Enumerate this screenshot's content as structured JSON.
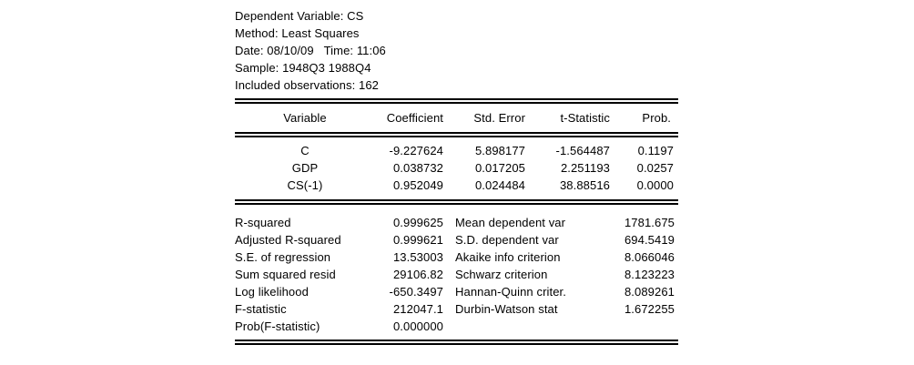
{
  "header": {
    "lines": [
      "Dependent Variable: CS",
      "Method: Least Squares",
      "Date: 08/10/09   Time: 11:06",
      "Sample: 1948Q3 1988Q4",
      "Included observations: 162"
    ]
  },
  "coef_table": {
    "columns": {
      "variable": "Variable",
      "coefficient": "Coefficient",
      "std_error": "Std. Error",
      "t_statistic": "t-Statistic",
      "prob": "Prob."
    },
    "rows": [
      {
        "variable": "C",
        "coefficient": "-9.227624",
        "std_error": "5.898177",
        "t_statistic": "-1.564487",
        "prob": "0.1197"
      },
      {
        "variable": "GDP",
        "coefficient": "0.038732",
        "std_error": "0.017205",
        "t_statistic": "2.251193",
        "prob": "0.0257"
      },
      {
        "variable": "CS(-1)",
        "coefficient": "0.952049",
        "std_error": "0.024484",
        "t_statistic": "38.88516",
        "prob": "0.0000"
      }
    ]
  },
  "summary": {
    "left": [
      {
        "label": "R-squared",
        "value": "0.999625"
      },
      {
        "label": "Adjusted R-squared",
        "value": "0.999621"
      },
      {
        "label": "S.E. of regression",
        "value": "13.53003"
      },
      {
        "label": "Sum squared resid",
        "value": "29106.82"
      },
      {
        "label": "Log likelihood",
        "value": "-650.3497"
      },
      {
        "label": "F-statistic",
        "value": "212047.1"
      },
      {
        "label": "Prob(F-statistic)",
        "value": "0.000000"
      }
    ],
    "right": [
      {
        "label": "Mean dependent var",
        "value": "1781.675"
      },
      {
        "label": "S.D. dependent var",
        "value": "694.5419"
      },
      {
        "label": "Akaike info criterion",
        "value": "8.066046"
      },
      {
        "label": "Schwarz criterion",
        "value": "8.123223"
      },
      {
        "label": "Hannan-Quinn criter.",
        "value": "8.089261"
      },
      {
        "label": "Durbin-Watson stat",
        "value": "1.672255"
      }
    ]
  },
  "colors": {
    "text": "#000000",
    "background": "#ffffff"
  }
}
